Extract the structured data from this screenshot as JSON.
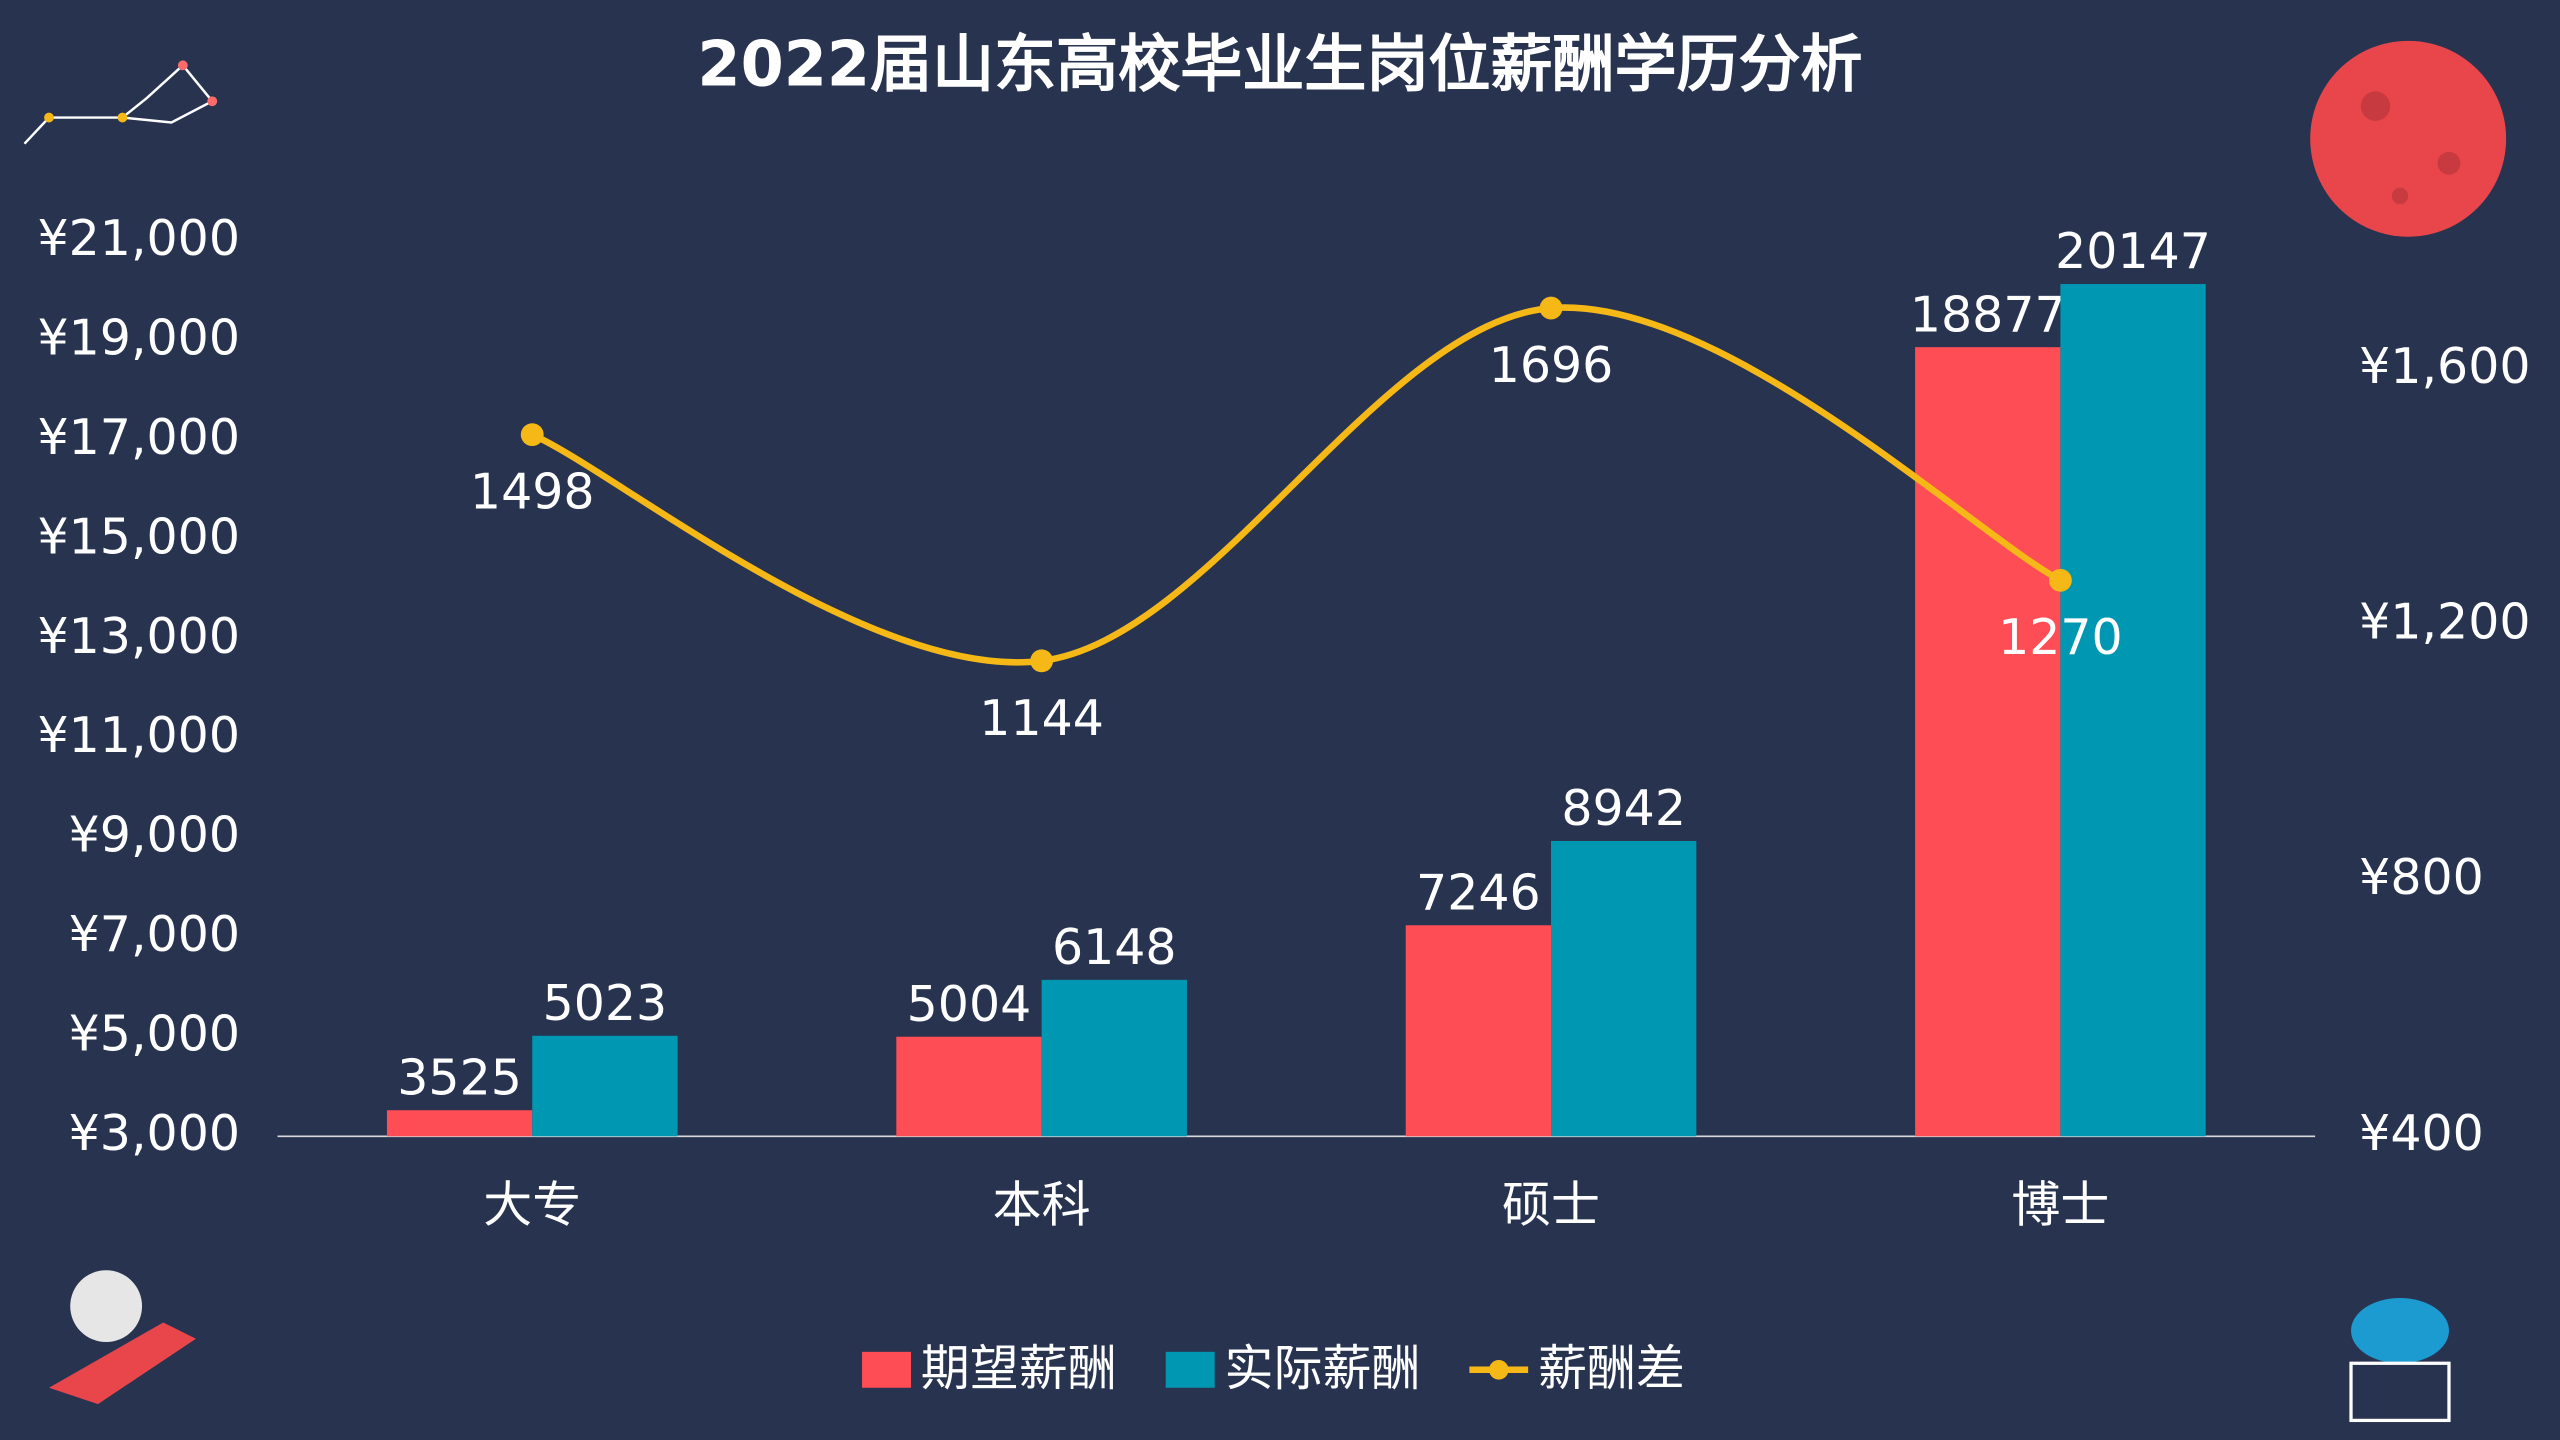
{
  "chart_data": {
    "type": "bar-line",
    "title": "2022届山东高校毕业生岗位薪酬学历分析",
    "categories": [
      "大专",
      "本科",
      "硕士",
      "博士"
    ],
    "series": [
      {
        "name": "期望薪酬",
        "color": "#ff4d55",
        "type": "bar",
        "values": [
          3525,
          5004,
          7246,
          18877
        ]
      },
      {
        "name": "实际薪酬",
        "color": "#0097b2",
        "type": "bar",
        "values": [
          5023,
          6148,
          8942,
          20147
        ]
      },
      {
        "name": "薪酬差",
        "color": "#f5b816",
        "type": "line",
        "axis": "y2",
        "values": [
          1498,
          1144,
          1696,
          1270
        ]
      }
    ],
    "ylim": [
      3000,
      21000
    ],
    "yticks": [
      {
        "value": 3000,
        "label": "¥3,000"
      },
      {
        "value": 5000,
        "label": "¥5,000"
      },
      {
        "value": 7000,
        "label": "¥7,000"
      },
      {
        "value": 9000,
        "label": "¥9,000"
      },
      {
        "value": 11000,
        "label": "¥11,000"
      },
      {
        "value": 13000,
        "label": "¥13,000"
      },
      {
        "value": 15000,
        "label": "¥15,000"
      },
      {
        "value": 17000,
        "label": "¥17,000"
      },
      {
        "value": 19000,
        "label": "¥19,000"
      },
      {
        "value": 21000,
        "label": "¥21,000"
      }
    ],
    "y2lim": [
      400,
      1800
    ],
    "y2ticks": [
      {
        "value": 400,
        "label": "¥400"
      },
      {
        "value": 800,
        "label": "¥800"
      },
      {
        "value": 1200,
        "label": "¥1,200"
      },
      {
        "value": 1600,
        "label": "¥1,600"
      }
    ],
    "grid": false,
    "legend": "bottom"
  }
}
